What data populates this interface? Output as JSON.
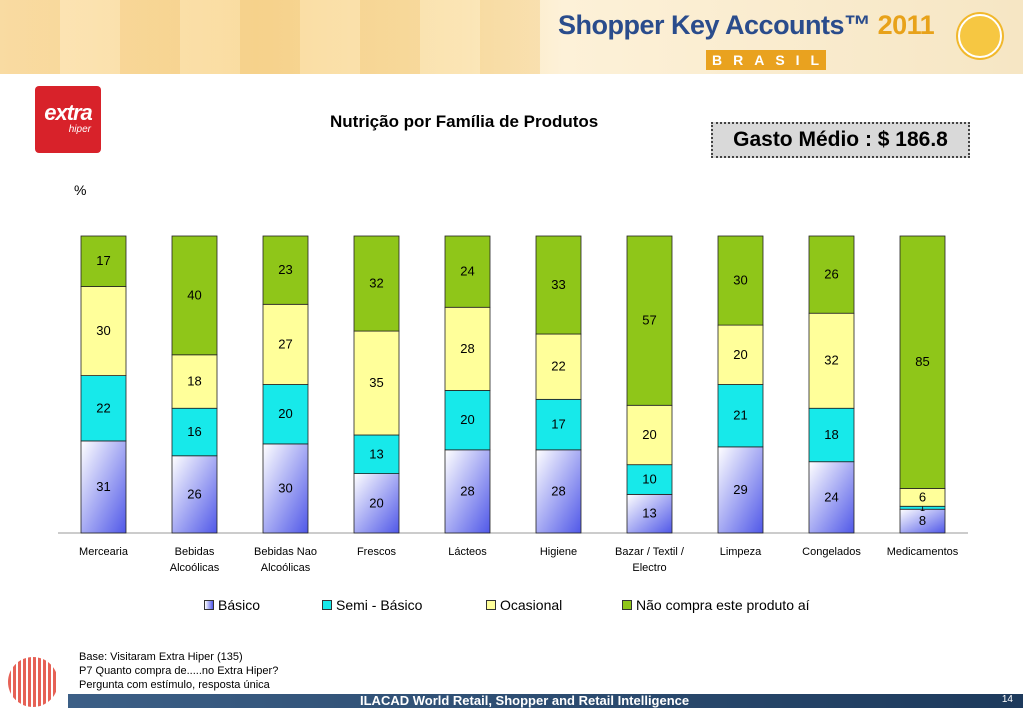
{
  "banner": {
    "title": "Shopper Key Accounts™",
    "year": "2011",
    "country": "BRASIL",
    "logo_icon": "shopping-cart-icon"
  },
  "store_logo": {
    "name": "extra",
    "sub": "hiper"
  },
  "gasto": "Gasto Médio : $ 186.8",
  "colors": {
    "basico": "#5058e8",
    "semi": "#17e9ea",
    "ocasional": "#ffff9a",
    "nao": "#8fc619"
  },
  "chart_data": {
    "type": "bar",
    "stacked": true,
    "title": "Nutrição por Família de Produtos",
    "ylabel": "%",
    "ylim": [
      0,
      100
    ],
    "categories": [
      "Mercearia",
      "Bebidas Alcoólicas",
      "Bebidas Nao Alcoólicas",
      "Frescos",
      "Lácteos",
      "Higiene",
      "Bazar / Textil / Electro",
      "Limpeza",
      "Congelados",
      "Medicamentos"
    ],
    "category_lines": [
      [
        "Mercearia"
      ],
      [
        "Bebidas",
        "Alcoólicas"
      ],
      [
        "Bebidas Nao",
        "Alcoólicas"
      ],
      [
        "Frescos"
      ],
      [
        "Lácteos"
      ],
      [
        "Higiene"
      ],
      [
        "Bazar / Textil /",
        "Electro"
      ],
      [
        "Limpeza"
      ],
      [
        "Congelados"
      ],
      [
        "Medicamentos"
      ]
    ],
    "series": [
      {
        "name": "Básico",
        "values": [
          31,
          26,
          30,
          20,
          28,
          28,
          13,
          29,
          24,
          8
        ],
        "labels": [
          "31",
          "26",
          "30",
          "20",
          "28",
          "28",
          "13",
          "29",
          "24",
          "8"
        ]
      },
      {
        "name": "Semi - Básico",
        "values": [
          22,
          16,
          20,
          13,
          20,
          17,
          10,
          21,
          18,
          1
        ],
        "labels": [
          "22",
          "16",
          "20",
          "13",
          "20",
          "17",
          "10",
          "21",
          "18",
          "1"
        ]
      },
      {
        "name": "Ocasional",
        "values": [
          30,
          18,
          27,
          35,
          28,
          22,
          20,
          20,
          32,
          6
        ],
        "labels": [
          "30",
          "18",
          "27",
          "35",
          "28",
          "22",
          "20",
          "20",
          "32",
          "6"
        ]
      },
      {
        "name": "Não compra este produto aí",
        "values": [
          17,
          40,
          23,
          32,
          24,
          33,
          57,
          30,
          26,
          85
        ],
        "labels": [
          "17",
          "40",
          "23",
          "32",
          "24",
          "33",
          "57",
          "30",
          "26",
          "85"
        ]
      }
    ],
    "legend_position": "bottom"
  },
  "footnote": [
    "Base: Visitaram Extra Hiper (135)",
    "P7 Quanto compra de.....no Extra Hiper?",
    "Pergunta com estímulo, resposta única"
  ],
  "footer": {
    "text": "ILACAD World Retail, Shopper and Retail Intelligence",
    "page": "14"
  }
}
